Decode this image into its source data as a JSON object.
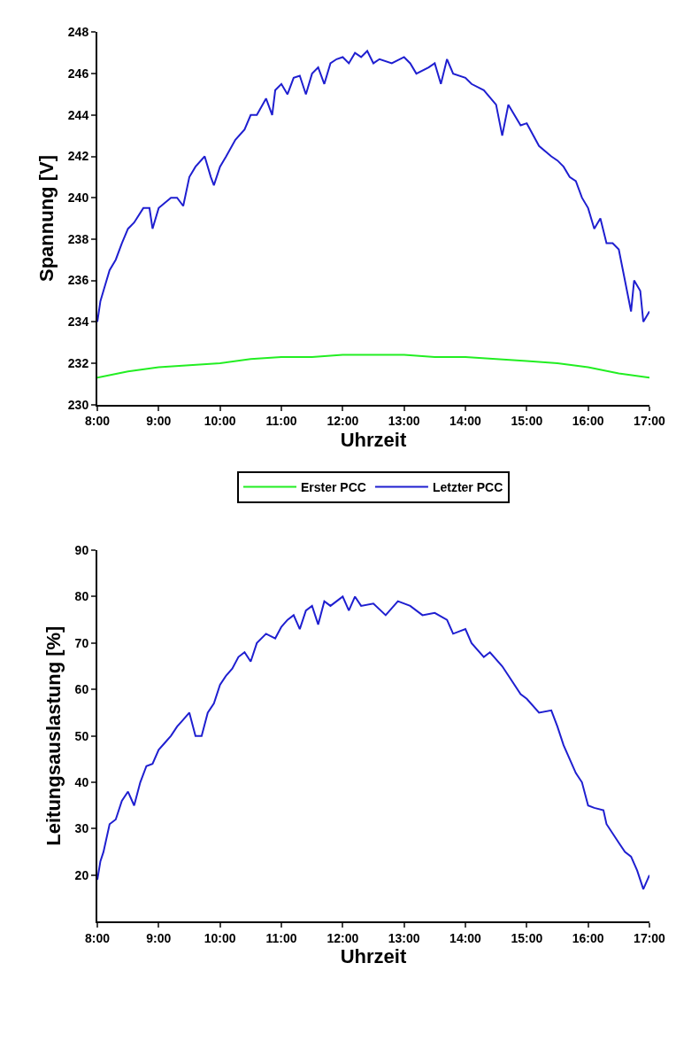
{
  "chart_data": [
    {
      "type": "line",
      "xlabel": "Uhrzeit",
      "ylabel": "Spannung [V]",
      "xlim": [
        8,
        17
      ],
      "ylim": [
        230,
        248
      ],
      "xticks": [
        {
          "value": 8,
          "label": "8:00"
        },
        {
          "value": 9,
          "label": "9:00"
        },
        {
          "value": 10,
          "label": "10:00"
        },
        {
          "value": 11,
          "label": "11:00"
        },
        {
          "value": 12,
          "label": "12:00"
        },
        {
          "value": 13,
          "label": "13:00"
        },
        {
          "value": 14,
          "label": "14:00"
        },
        {
          "value": 15,
          "label": "15:00"
        },
        {
          "value": 16,
          "label": "16:00"
        },
        {
          "value": 17,
          "label": "17:00"
        }
      ],
      "yticks": [
        230,
        232,
        234,
        236,
        238,
        240,
        242,
        244,
        246,
        248
      ],
      "legend": "bottom",
      "marker": "none",
      "line_style": "solid",
      "series": [
        {
          "name": "Erster PCC",
          "color": "#22ee22",
          "x": [
            8.0,
            8.5,
            9.0,
            9.5,
            10.0,
            10.5,
            11.0,
            11.5,
            12.0,
            12.5,
            13.0,
            13.5,
            14.0,
            14.5,
            15.0,
            15.5,
            16.0,
            16.5,
            17.0
          ],
          "values": [
            231.3,
            231.6,
            231.8,
            231.9,
            232.0,
            232.2,
            232.3,
            232.3,
            232.4,
            232.4,
            232.4,
            232.3,
            232.3,
            232.2,
            232.1,
            232.0,
            231.8,
            231.5,
            231.3
          ]
        },
        {
          "name": "Letzter PCC",
          "color": "#1f1fd0",
          "x": [
            8.0,
            8.05,
            8.1,
            8.2,
            8.3,
            8.4,
            8.5,
            8.6,
            8.75,
            8.85,
            8.9,
            9.0,
            9.2,
            9.3,
            9.4,
            9.5,
            9.6,
            9.75,
            9.85,
            9.9,
            10.0,
            10.1,
            10.25,
            10.4,
            10.5,
            10.6,
            10.75,
            10.85,
            10.9,
            11.0,
            11.1,
            11.2,
            11.3,
            11.4,
            11.5,
            11.6,
            11.7,
            11.8,
            11.9,
            12.0,
            12.1,
            12.2,
            12.3,
            12.4,
            12.5,
            12.6,
            12.8,
            13.0,
            13.1,
            13.2,
            13.4,
            13.5,
            13.6,
            13.7,
            13.8,
            14.0,
            14.1,
            14.3,
            14.5,
            14.6,
            14.7,
            14.9,
            15.0,
            15.2,
            15.4,
            15.5,
            15.6,
            15.7,
            15.8,
            15.9,
            16.0,
            16.1,
            16.2,
            16.3,
            16.4,
            16.5,
            16.6,
            16.7,
            16.75,
            16.85,
            16.9,
            17.0
          ],
          "values": [
            234.0,
            235,
            235.5,
            236.5,
            237,
            237.8,
            238.5,
            238.8,
            239.5,
            239.5,
            238.5,
            239.5,
            240,
            240,
            239.6,
            241,
            241.5,
            242,
            241,
            240.6,
            241.5,
            242,
            242.8,
            243.3,
            244,
            244,
            244.8,
            244,
            245.2,
            245.5,
            245,
            245.8,
            245.9,
            245,
            246,
            246.3,
            245.5,
            246.5,
            246.7,
            246.8,
            246.5,
            247,
            246.8,
            247.1,
            246.5,
            246.7,
            246.5,
            246.8,
            246.5,
            246,
            246.3,
            246.5,
            245.5,
            246.7,
            246,
            245.8,
            245.5,
            245.2,
            244.5,
            243,
            244.5,
            243.5,
            243.6,
            242.5,
            242,
            241.8,
            241.5,
            241,
            240.8,
            240,
            239.5,
            238.5,
            239,
            237.8,
            237.8,
            237.5,
            236,
            234.5,
            236,
            235.5,
            234,
            234.5
          ]
        }
      ]
    },
    {
      "type": "line",
      "xlabel": "Uhrzeit",
      "ylabel": "Leitungsauslastung [%]",
      "xlim": [
        8,
        17
      ],
      "ylim": [
        10,
        90
      ],
      "xticks": [
        {
          "value": 8,
          "label": "8:00"
        },
        {
          "value": 9,
          "label": "9:00"
        },
        {
          "value": 10,
          "label": "10:00"
        },
        {
          "value": 11,
          "label": "11:00"
        },
        {
          "value": 12,
          "label": "12:00"
        },
        {
          "value": 13,
          "label": "13:00"
        },
        {
          "value": 14,
          "label": "14:00"
        },
        {
          "value": 15,
          "label": "15:00"
        },
        {
          "value": 16,
          "label": "16:00"
        },
        {
          "value": 17,
          "label": "17:00"
        }
      ],
      "yticks": [
        20,
        30,
        40,
        50,
        60,
        70,
        80,
        90
      ],
      "marker": "none",
      "line_style": "solid",
      "series": [
        {
          "color": "#1f1fd0",
          "x": [
            8.0,
            8.05,
            8.1,
            8.2,
            8.3,
            8.4,
            8.5,
            8.6,
            8.7,
            8.8,
            8.9,
            9.0,
            9.1,
            9.2,
            9.3,
            9.4,
            9.5,
            9.6,
            9.7,
            9.8,
            9.9,
            10.0,
            10.1,
            10.2,
            10.3,
            10.4,
            10.5,
            10.6,
            10.75,
            10.9,
            11.0,
            11.1,
            11.2,
            11.3,
            11.4,
            11.5,
            11.6,
            11.7,
            11.8,
            12.0,
            12.1,
            12.2,
            12.3,
            12.5,
            12.7,
            12.9,
            13.1,
            13.3,
            13.5,
            13.7,
            13.8,
            14.0,
            14.1,
            14.3,
            14.4,
            14.6,
            14.7,
            14.9,
            15.0,
            15.2,
            15.4,
            15.5,
            15.6,
            15.7,
            15.8,
            15.9,
            16.0,
            16.1,
            16.25,
            16.3,
            16.5,
            16.6,
            16.7,
            16.8,
            16.9,
            17.0
          ],
          "values": [
            19,
            23,
            25,
            31,
            32,
            36,
            38,
            35,
            40,
            43.5,
            44,
            47,
            48.5,
            50,
            52,
            53.5,
            55,
            50,
            50,
            55,
            57,
            61,
            63,
            64.5,
            67,
            68,
            66,
            70,
            72,
            71,
            73.5,
            75,
            76,
            73,
            77,
            78,
            74,
            79,
            78,
            80,
            77,
            80,
            78,
            78.5,
            76,
            79,
            78,
            76,
            76.5,
            75,
            72,
            73,
            70,
            67,
            68,
            65,
            63,
            59,
            58,
            55,
            55.5,
            52,
            48,
            45,
            42,
            40,
            35,
            34.5,
            34,
            31,
            27,
            25,
            24,
            21,
            17,
            20
          ]
        }
      ]
    }
  ]
}
